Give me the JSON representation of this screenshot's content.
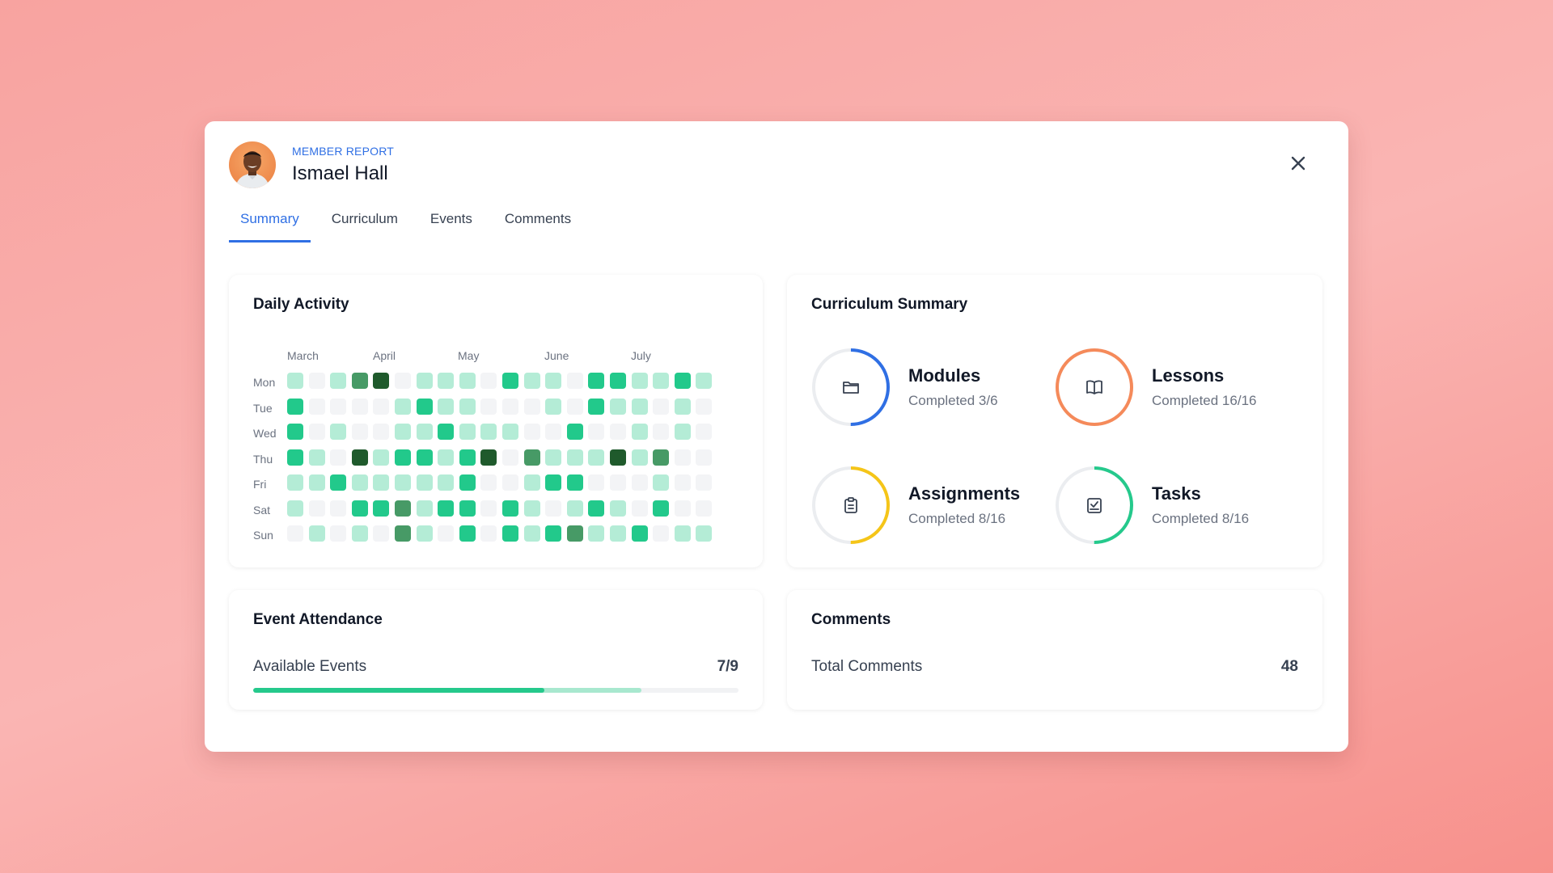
{
  "header": {
    "eyebrow": "MEMBER REPORT",
    "name": "Ismael Hall"
  },
  "tabs": [
    {
      "label": "Summary",
      "active": true
    },
    {
      "label": "Curriculum",
      "active": false
    },
    {
      "label": "Events",
      "active": false
    },
    {
      "label": "Comments",
      "active": false
    }
  ],
  "activity": {
    "title": "Daily Activity",
    "months": [
      "March",
      "April",
      "May",
      "June",
      "July"
    ],
    "days": [
      "Mon",
      "Tue",
      "Wed",
      "Thu",
      "Fri",
      "Sat",
      "Sun"
    ],
    "levels": [
      [
        1,
        0,
        1,
        3,
        4,
        0,
        1,
        1,
        1,
        0,
        2,
        1,
        1,
        0,
        2,
        2,
        1,
        1,
        2,
        1
      ],
      [
        2,
        0,
        0,
        0,
        0,
        1,
        2,
        1,
        1,
        0,
        0,
        0,
        1,
        0,
        2,
        1,
        1,
        0,
        1,
        0
      ],
      [
        2,
        0,
        1,
        0,
        0,
        1,
        1,
        2,
        1,
        1,
        1,
        0,
        0,
        2,
        0,
        0,
        1,
        0,
        1,
        0
      ],
      [
        2,
        1,
        0,
        4,
        1,
        2,
        2,
        1,
        2,
        4,
        0,
        3,
        1,
        1,
        1,
        4,
        1,
        3,
        0,
        0
      ],
      [
        1,
        1,
        2,
        1,
        1,
        1,
        1,
        1,
        2,
        0,
        0,
        1,
        2,
        2,
        0,
        0,
        0,
        1,
        0,
        0
      ],
      [
        1,
        0,
        0,
        2,
        2,
        3,
        1,
        2,
        2,
        0,
        2,
        1,
        0,
        1,
        2,
        1,
        0,
        2,
        0,
        0
      ],
      [
        0,
        1,
        0,
        1,
        0,
        3,
        1,
        0,
        2,
        0,
        2,
        1,
        2,
        3,
        1,
        1,
        2,
        0,
        1,
        1
      ]
    ],
    "palette": [
      "#f3f4f6",
      "#b4ecd6",
      "#22c98b",
      "#479a66",
      "#1f5a2c"
    ]
  },
  "curriculum": {
    "title": "Curriculum Summary",
    "items": [
      {
        "label": "Modules",
        "sub": "Completed 3/6",
        "color": "#2f6fe4",
        "progress": 0.5,
        "icon": "folder-icon"
      },
      {
        "label": "Lessons",
        "sub": "Completed 16/16",
        "color": "#f58a5a",
        "progress": 1.0,
        "icon": "book-icon"
      },
      {
        "label": "Assignments",
        "sub": "Completed 8/16",
        "color": "#f5c518",
        "progress": 0.5,
        "icon": "clipboard-icon"
      },
      {
        "label": "Tasks",
        "sub": "Completed 8/16",
        "color": "#25c98c",
        "progress": 0.5,
        "icon": "checkbox-icon"
      }
    ]
  },
  "events": {
    "title": "Event Attendance",
    "label": "Available Events",
    "value": "7/9",
    "attended": 0.6,
    "available": 0.8
  },
  "comments": {
    "title": "Comments",
    "label": "Total Comments",
    "value": "48"
  }
}
